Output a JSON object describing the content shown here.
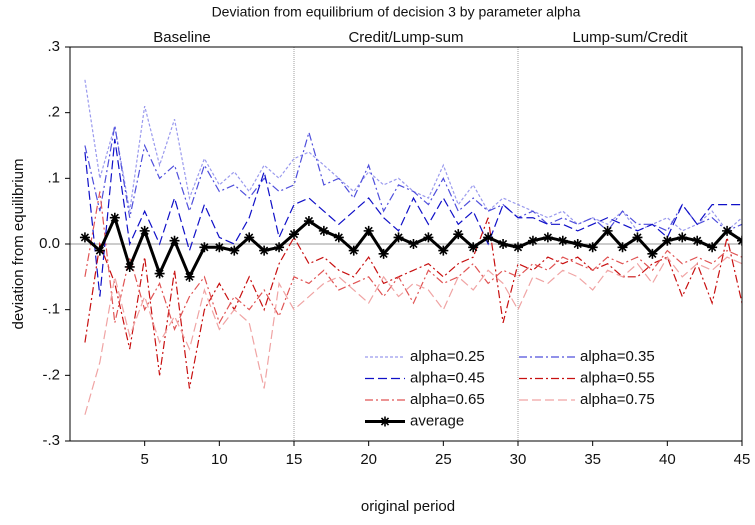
{
  "chart_data": {
    "type": "line",
    "title": "Deviation from equilibrium of decision 3 by parameter alpha",
    "xlabel": "original period",
    "ylabel": "deviation from equilibrium",
    "sections": [
      "Baseline",
      "Credit/Lump-sum",
      "Lump-sum/Credit"
    ],
    "dividers": [
      15,
      30
    ],
    "x": [
      1,
      2,
      3,
      4,
      5,
      6,
      7,
      8,
      9,
      10,
      11,
      12,
      13,
      14,
      15,
      16,
      17,
      18,
      19,
      20,
      21,
      22,
      23,
      24,
      25,
      26,
      27,
      28,
      29,
      30,
      31,
      32,
      33,
      34,
      35,
      36,
      37,
      38,
      39,
      40,
      41,
      42,
      43,
      44,
      45
    ],
    "xlim": [
      0,
      45
    ],
    "xticks": [
      5,
      10,
      15,
      20,
      25,
      30,
      35,
      40,
      45
    ],
    "ylim": [
      -0.3,
      0.3
    ],
    "yticks": [
      {
        "value": 0.3,
        "label": ".3"
      },
      {
        "value": 0.2,
        "label": ".2"
      },
      {
        "value": 0.1,
        "label": ".1"
      },
      {
        "value": 0,
        "label": "0.0"
      },
      {
        "value": -0.1,
        "label": "-.1"
      },
      {
        "value": -0.2,
        "label": "-.2"
      },
      {
        "value": -0.3,
        "label": "-.3"
      }
    ],
    "legend": "lower right",
    "series": [
      {
        "name": "alpha=0.25",
        "color": "#9a9aee",
        "line_style": "dotted",
        "values": [
          0.25,
          0.1,
          0.18,
          0.05,
          0.21,
          0.12,
          0.19,
          0.07,
          0.13,
          0.09,
          0.11,
          0.08,
          0.12,
          0.1,
          0.13,
          0.14,
          0.12,
          0.1,
          0.08,
          0.11,
          0.09,
          0.1,
          0.08,
          0.07,
          0.12,
          0.06,
          0.09,
          0.05,
          0.07,
          0.06,
          0.05,
          0.04,
          0.05,
          0.03,
          0.04,
          0.03,
          0.05,
          0.02,
          0.03,
          0.04,
          0.02,
          0.03,
          0.05,
          0.02,
          0.04
        ]
      },
      {
        "name": "alpha=0.35",
        "color": "#4f4fdc",
        "line_style": "dashdot",
        "values": [
          0.15,
          0.05,
          0.18,
          0.04,
          0.15,
          0.1,
          0.12,
          0.05,
          0.12,
          0.08,
          0.09,
          0.07,
          0.1,
          0.08,
          0.09,
          0.17,
          0.09,
          0.1,
          0.07,
          0.12,
          0.05,
          0.09,
          0.08,
          0.06,
          0.1,
          0.05,
          0.07,
          0.05,
          0.06,
          0.04,
          0.05,
          0.03,
          0.04,
          0.03,
          0.04,
          0.02,
          0.05,
          0.03,
          0.03,
          0.02,
          0.06,
          0.03,
          0.04,
          0.02,
          0.03
        ]
      },
      {
        "name": "alpha=0.45",
        "color": "#1010c8",
        "line_style": "dashed",
        "values": [
          0.14,
          -0.08,
          0.16,
          0.0,
          0.05,
          0.0,
          0.07,
          -0.01,
          0.06,
          0.01,
          0.0,
          0.04,
          0.11,
          0.01,
          0.06,
          0.07,
          0.05,
          0.03,
          0.05,
          0.07,
          0.04,
          0.02,
          0.07,
          0.03,
          0.07,
          0.03,
          0.05,
          0.0,
          0.06,
          0.04,
          0.04,
          0.03,
          0.03,
          0.02,
          0.03,
          0.04,
          0.03,
          0.02,
          0.03,
          0.01,
          0.06,
          0.03,
          0.06,
          0.06,
          0.06
        ]
      },
      {
        "name": "alpha=0.55",
        "color": "#c81010",
        "line_style": "dashdot",
        "values": [
          -0.15,
          0.0,
          -0.06,
          -0.16,
          -0.02,
          -0.2,
          -0.04,
          -0.22,
          -0.1,
          -0.06,
          -0.1,
          -0.05,
          -0.1,
          -0.03,
          0.01,
          -0.03,
          -0.02,
          -0.04,
          -0.05,
          -0.02,
          -0.06,
          -0.05,
          -0.04,
          -0.03,
          -0.05,
          -0.03,
          -0.02,
          0.04,
          -0.12,
          -0.03,
          -0.04,
          -0.02,
          -0.03,
          -0.02,
          -0.04,
          -0.03,
          -0.05,
          -0.05,
          -0.03,
          -0.02,
          -0.08,
          -0.03,
          -0.09,
          0.01,
          -0.09
        ]
      },
      {
        "name": "alpha=0.65",
        "color": "#e05454",
        "line_style": "dashdot",
        "values": [
          -0.05,
          0.08,
          -0.12,
          -0.02,
          -0.1,
          -0.06,
          -0.13,
          -0.08,
          -0.05,
          -0.12,
          -0.08,
          -0.1,
          -0.07,
          -0.11,
          -0.05,
          -0.06,
          -0.04,
          -0.07,
          -0.06,
          -0.05,
          -0.08,
          -0.05,
          -0.09,
          -0.04,
          -0.06,
          -0.05,
          -0.03,
          -0.06,
          -0.04,
          -0.05,
          -0.03,
          -0.04,
          -0.02,
          -0.03,
          -0.04,
          -0.02,
          -0.03,
          -0.02,
          -0.04,
          -0.01,
          -0.03,
          -0.02,
          -0.03,
          -0.01,
          -0.02
        ]
      },
      {
        "name": "alpha=0.75",
        "color": "#f0a4a4",
        "line_style": "dashed",
        "values": [
          -0.26,
          -0.18,
          -0.05,
          -0.14,
          -0.08,
          -0.15,
          -0.11,
          -0.16,
          -0.07,
          -0.13,
          -0.1,
          -0.12,
          -0.22,
          -0.06,
          -0.1,
          -0.08,
          -0.06,
          -0.05,
          -0.07,
          -0.09,
          -0.05,
          -0.08,
          -0.06,
          -0.07,
          -0.1,
          -0.05,
          -0.07,
          -0.04,
          -0.06,
          -0.1,
          -0.05,
          -0.06,
          -0.04,
          -0.05,
          -0.07,
          -0.04,
          -0.05,
          -0.03,
          -0.06,
          -0.02,
          -0.05,
          -0.03,
          -0.04,
          -0.02,
          -0.03
        ]
      },
      {
        "name": "average",
        "color": "#000000",
        "line_style": "solid",
        "marker": "asterisk",
        "values": [
          0.01,
          -0.01,
          0.04,
          -0.035,
          0.02,
          -0.045,
          0.005,
          -0.05,
          -0.005,
          -0.005,
          -0.01,
          0.01,
          -0.01,
          -0.005,
          0.015,
          0.035,
          0.02,
          0.01,
          -0.01,
          0.02,
          -0.015,
          0.01,
          0.0,
          0.01,
          -0.01,
          0.015,
          -0.005,
          0.01,
          0.0,
          -0.005,
          0.005,
          0.01,
          0.005,
          0.0,
          -0.005,
          0.02,
          -0.005,
          0.01,
          -0.015,
          0.005,
          0.01,
          0.005,
          -0.005,
          0.02,
          0.005
        ]
      }
    ]
  }
}
